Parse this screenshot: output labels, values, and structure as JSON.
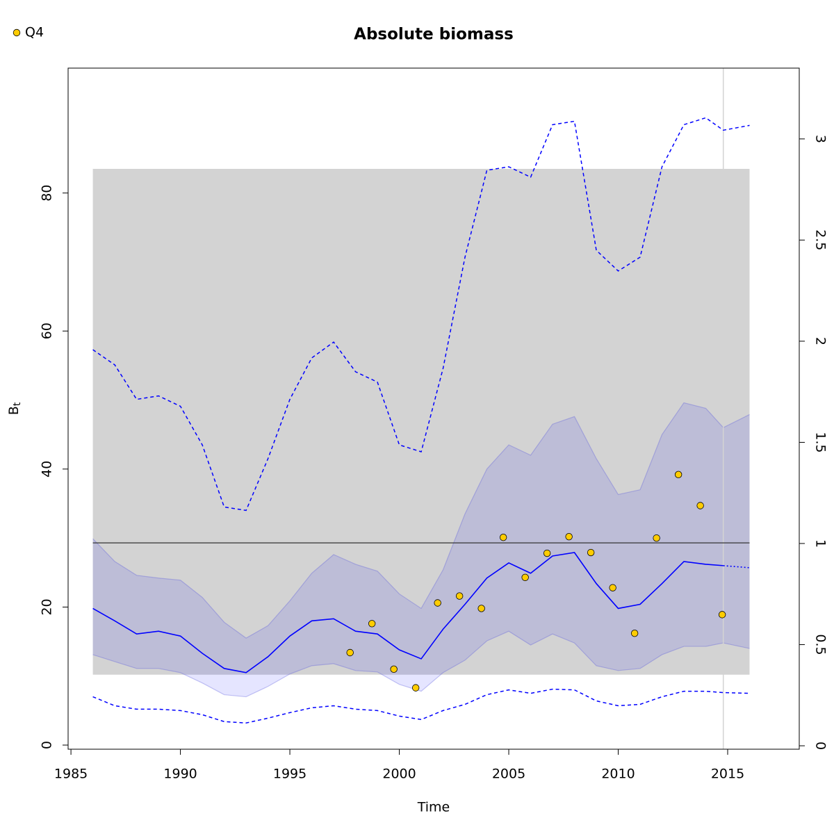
{
  "chart_data": {
    "type": "line",
    "title": "Absolute biomass",
    "xlabel": "Time",
    "ylabel": {
      "main": "B",
      "sub": "t"
    },
    "xlim": [
      1984.87,
      2018.27
    ],
    "xticks": [
      1985,
      1990,
      1995,
      2000,
      2005,
      2010,
      2015
    ],
    "ylim": [
      -0.6,
      98.1
    ],
    "yticks": [
      0,
      20,
      40,
      60,
      80
    ],
    "y2lim": [
      -0.017,
      3.35
    ],
    "y2ticks": [
      0,
      0.5,
      1,
      1.5,
      2,
      2.5,
      3
    ],
    "x": [
      1986,
      1987,
      1988,
      1989,
      1990,
      1991,
      1992,
      1993,
      1994,
      1995,
      1996,
      1997,
      1998,
      1999,
      2000,
      2001,
      2002,
      2003,
      2004,
      2005,
      2006,
      2007,
      2008,
      2009,
      2010,
      2011,
      2012,
      2013,
      2014,
      2014.8,
      2016
    ],
    "estimate": {
      "color": "#0000ff",
      "values": [
        19.8,
        18.0,
        16.1,
        16.5,
        15.8,
        13.3,
        11.1,
        10.5,
        12.8,
        15.8,
        18.0,
        18.3,
        16.5,
        16.1,
        13.8,
        12.5,
        16.8,
        20.4,
        24.2,
        26.4,
        24.9,
        27.4,
        27.9,
        23.4,
        19.8,
        20.4,
        23.4,
        26.6,
        26.2,
        26.0,
        null
      ]
    },
    "forecast": {
      "color": "#0000ff",
      "values": [
        null,
        null,
        null,
        null,
        null,
        null,
        null,
        null,
        null,
        null,
        null,
        null,
        null,
        null,
        null,
        null,
        null,
        null,
        null,
        null,
        null,
        null,
        null,
        null,
        null,
        null,
        null,
        null,
        null,
        26.0,
        25.7
      ]
    },
    "band": {
      "color": "rgba(0,0,255,0.1)",
      "upper": [
        29.9,
        26.6,
        24.6,
        24.2,
        23.9,
        21.4,
        17.8,
        15.5,
        17.3,
        20.9,
        24.9,
        27.6,
        26.2,
        25.2,
        21.9,
        19.8,
        25.4,
        33.5,
        40.0,
        43.5,
        42.0,
        46.5,
        47.6,
        41.5,
        36.3,
        37.0,
        45.0,
        49.6,
        48.8,
        46.0,
        47.9
      ],
      "lower": [
        13.1,
        12.1,
        11.1,
        11.1,
        10.5,
        9.0,
        7.3,
        7.0,
        8.5,
        10.3,
        11.5,
        11.8,
        10.8,
        10.6,
        8.8,
        7.8,
        10.5,
        12.3,
        15.1,
        16.5,
        14.5,
        16.1,
        14.8,
        11.5,
        10.8,
        11.1,
        13.1,
        14.3,
        14.3,
        14.8,
        14.0
      ]
    },
    "dashed_upper": {
      "color": "#0000ff",
      "values": [
        57.3,
        55.1,
        50.1,
        50.6,
        49.1,
        43.5,
        34.5,
        34.0,
        41.5,
        50.1,
        56.1,
        58.4,
        54.1,
        52.6,
        43.5,
        42.5,
        54.6,
        70.7,
        83.3,
        83.8,
        82.3,
        89.9,
        90.4,
        71.7,
        68.7,
        70.7,
        83.8,
        89.9,
        90.9,
        89.1,
        89.8
      ]
    },
    "dashed_lower": {
      "color": "#0000ff",
      "values": [
        7.0,
        5.7,
        5.2,
        5.2,
        5.0,
        4.4,
        3.4,
        3.2,
        3.9,
        4.7,
        5.4,
        5.7,
        5.2,
        5.0,
        4.2,
        3.7,
        5.0,
        5.9,
        7.3,
        8.0,
        7.5,
        8.1,
        8.0,
        6.4,
        5.7,
        5.9,
        7.0,
        7.8,
        7.8,
        7.6,
        7.5
      ]
    },
    "points": {
      "name": "Q4",
      "color": "#ffcc00",
      "x": [
        1997.75,
        1998.75,
        1999.75,
        2000.75,
        2001.75,
        2002.75,
        2003.75,
        2004.75,
        2005.75,
        2006.75,
        2007.75,
        2008.75,
        2009.75,
        2010.75,
        2011.75,
        2012.75,
        2013.75,
        2014.75
      ],
      "values": [
        13.4,
        17.6,
        11.0,
        8.3,
        20.6,
        21.6,
        19.8,
        30.1,
        24.3,
        27.8,
        30.2,
        27.9,
        22.8,
        16.2,
        30.0,
        39.2,
        34.7,
        18.9
      ]
    },
    "shaded_region": {
      "color": "#d3d3d3",
      "x": [
        1986,
        2016
      ],
      "y": [
        10.2,
        83.5
      ]
    },
    "reference_line": 29.3,
    "vline": 2014.8,
    "legend": "top-left"
  }
}
